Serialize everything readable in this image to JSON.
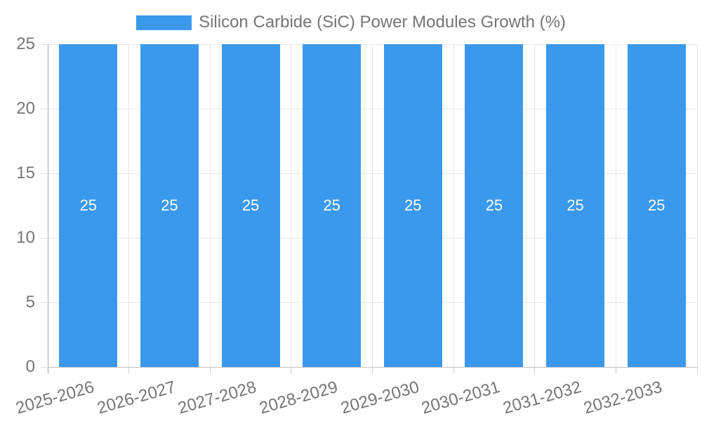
{
  "chart_data": {
    "type": "bar",
    "legend": "Silicon Carbide (SiC) Power Modules Growth (%)",
    "legend_position": "top",
    "categories": [
      "2025-2026",
      "2026-2027",
      "2027-2028",
      "2028-2029",
      "2029-2030",
      "2030-2031",
      "2031-2032",
      "2032-2033"
    ],
    "values": [
      25,
      25,
      25,
      25,
      25,
      25,
      25,
      25
    ],
    "bar_value_labels": [
      "25",
      "25",
      "25",
      "25",
      "25",
      "25",
      "25",
      "25"
    ],
    "title": "",
    "xlabel": "",
    "ylabel": "",
    "ylim": [
      0,
      25
    ],
    "yticks": [
      0,
      5,
      10,
      15,
      20,
      25
    ],
    "grid": true,
    "colors": {
      "bar": "#3a99ec",
      "bar_label": "#ffffff",
      "axis_text": "#757575",
      "gridline": "#e6e6e6",
      "axis_line": "#ababab",
      "legend_text": "#757575"
    }
  }
}
